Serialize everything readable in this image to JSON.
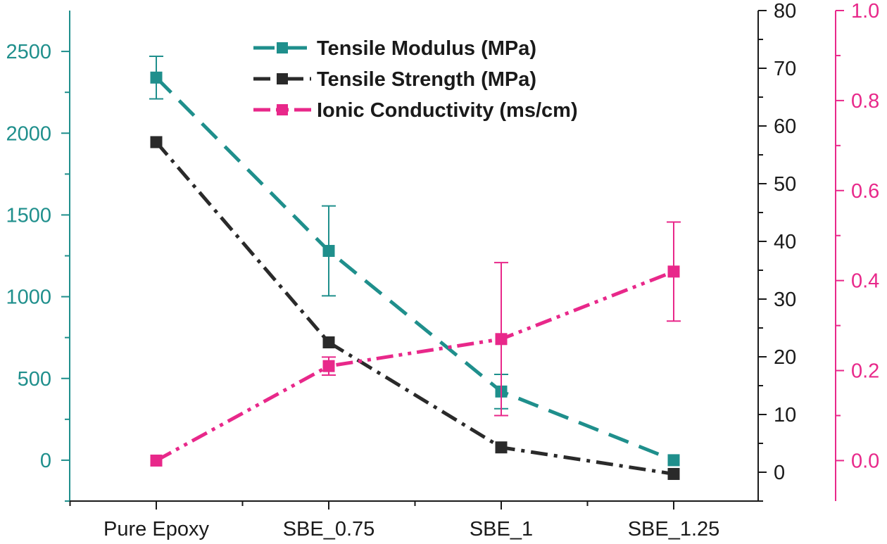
{
  "chart_data": {
    "type": "line",
    "title": "",
    "categories": [
      "Pure Epoxy",
      "SBE_0.75",
      "SBE_1",
      "SBE_1.25"
    ],
    "axes": {
      "left": {
        "ylim": [
          -250,
          2750
        ],
        "ticks": [
          0,
          500,
          1000,
          1500,
          2000,
          2500
        ],
        "labels": [
          "0",
          "500",
          "1000",
          "1500",
          "2000",
          "2500"
        ],
        "color": "#1f8f8c"
      },
      "right1": {
        "ylim": [
          -5,
          80
        ],
        "ticks": [
          0,
          10,
          20,
          30,
          40,
          50,
          60,
          70,
          80
        ],
        "labels": [
          "0",
          "10",
          "20",
          "30",
          "40",
          "50",
          "60",
          "70",
          "80"
        ],
        "color": "#1a1a1a"
      },
      "right2": {
        "ylim": [
          -0.09,
          1.0
        ],
        "ticks": [
          0.0,
          0.2,
          0.4,
          0.6,
          0.8,
          1.0
        ],
        "labels": [
          "0.0",
          "0.2",
          "0.4",
          "0.6",
          "0.8",
          "1.0"
        ],
        "color": "#e8288a"
      }
    },
    "series": [
      {
        "name": "Tensile Modulus (MPa)",
        "axis": "left",
        "color": "#1f8f8c",
        "dash": "dash",
        "values": [
          2340,
          1280,
          420,
          0
        ],
        "errors": [
          130,
          275,
          105,
          0
        ]
      },
      {
        "name": "Tensile Strength (MPa)",
        "axis": "right1",
        "color": "#2a2a2a",
        "dash": "dashdot",
        "values": [
          57.2,
          22.5,
          4.3,
          -0.3
        ],
        "errors": [
          0,
          0,
          0,
          0
        ]
      },
      {
        "name": "Ionic Conductivity (ms/cm)",
        "axis": "right2",
        "color": "#e8288a",
        "dash": "dashdotdot",
        "values": [
          0.0,
          0.21,
          0.27,
          0.42
        ],
        "errors": [
          0,
          0.02,
          0.17,
          0.11
        ]
      }
    ],
    "legend": {
      "position": "top-center"
    }
  }
}
